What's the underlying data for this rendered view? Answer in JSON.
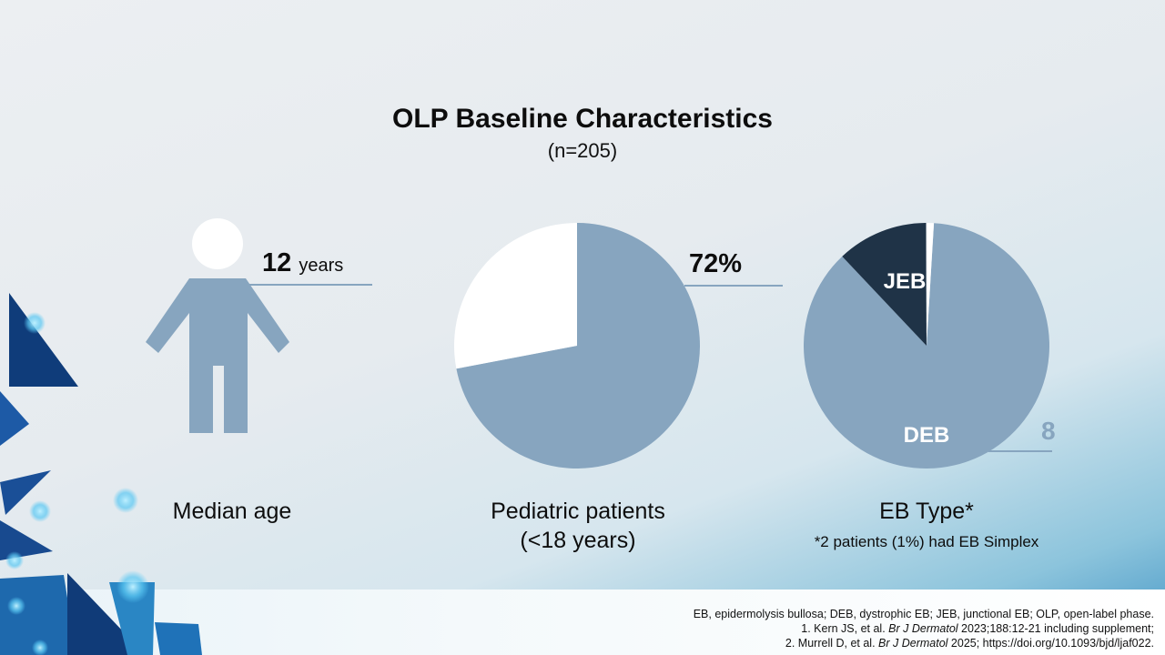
{
  "slide": {
    "title": "OLP Baseline Characteristics",
    "subtitle": "(n=205)"
  },
  "median_age": {
    "value": "12",
    "unit": "years",
    "caption": "Median age",
    "icon": "person-icon"
  },
  "pediatric": {
    "value_label": "72%",
    "caption_line1": "Pediatric patients",
    "caption_line2": "(<18 years)"
  },
  "eb_type": {
    "caption": "EB Type*",
    "footnote": "*2 patients (1%) had EB Simplex",
    "partial_label": "8"
  },
  "references": {
    "abbrev": "EB, epidermolysis bullosa; DEB, dystrophic EB; JEB, junctional EB; OLP, open-label phase.",
    "ref1_pre": "1. Kern JS, et al. ",
    "ref1_journal": "Br J Dermatol",
    "ref1_post": " 2023;188:12-21 including supplement;",
    "ref2_pre": "2. Murrell D, et al. ",
    "ref2_journal": "Br J Dermatol",
    "ref2_post": " 2025; https://doi.org/10.1093/bjd/ljaf022."
  },
  "colors": {
    "pie_main": "#87a5bf",
    "pie_other": "#ffffff",
    "jeb": "#1f3347",
    "person": "#87a5bf",
    "leader_line": "#87a5bf"
  },
  "chart_data": [
    {
      "type": "pie",
      "labels": [
        "72%",
        ""
      ],
      "values": [
        72,
        28
      ]
    },
    {
      "type": "pie",
      "labels": [
        "DEB",
        "JEB",
        ""
      ],
      "values": [
        87,
        12,
        1
      ]
    }
  ]
}
